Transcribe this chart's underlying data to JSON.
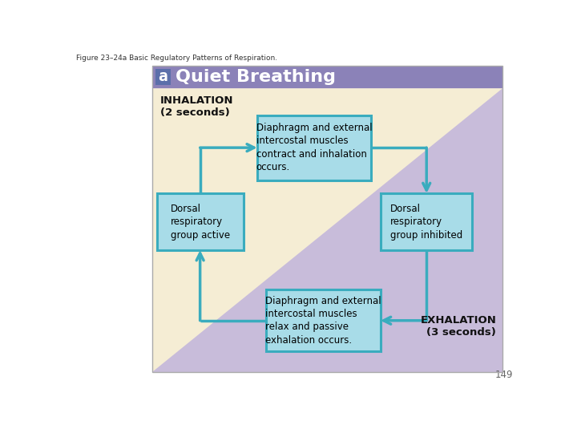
{
  "figure_label": "Figure 23–24a Basic Regulatory Patterns of Respiration.",
  "title_bar_color": "#8B82B8",
  "title_letter": "a",
  "title_letter_bg": "#5B6FAA",
  "title_text": "Quiet Breathing",
  "bg_cream": "#F5EDD4",
  "bg_purple": "#C8BCDA",
  "box_fill": "#A8DCE8",
  "box_edge": "#3AACBE",
  "arrow_color": "#3AACBE",
  "label_inhalation": "INHALATION\n(2 seconds)",
  "label_exhalation": "EXHALATION\n(3 seconds)",
  "box1_text": "Diaphragm and external\nintercostal muscles\ncontract and inhalation\noccurs.",
  "box2_text": "Dorsal\nrespiratory\ngroup inhibited",
  "box3_text": "Diaphragm and external\nintercostal muscles\nrelax and passive\nexhalation occurs.",
  "box4_text": "Dorsal\nrespiratory\ngroup active",
  "page_number": "149",
  "main_border_color": "#AAAAAA",
  "fig_w": 7.2,
  "fig_h": 5.4,
  "dpi": 100
}
